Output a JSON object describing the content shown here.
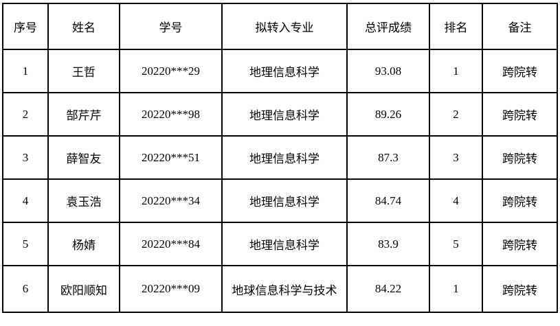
{
  "colors": {
    "border": "#000000",
    "background": "#ffffff",
    "text": "#000000"
  },
  "table": {
    "columns": [
      {
        "key": "index",
        "label": "序号"
      },
      {
        "key": "name",
        "label": "姓名"
      },
      {
        "key": "student_id",
        "label": "学号"
      },
      {
        "key": "target_major",
        "label": "拟转入专业"
      },
      {
        "key": "total_score",
        "label": "总评成绩"
      },
      {
        "key": "rank",
        "label": "排名"
      },
      {
        "key": "remark",
        "label": "备注"
      }
    ],
    "rows": [
      [
        "1",
        "王哲",
        "20220***29",
        "地理信息科学",
        "93.08",
        "1",
        "跨院转"
      ],
      [
        "2",
        "郜芹芹",
        "20220***98",
        "地理信息科学",
        "89.26",
        "2",
        "跨院转"
      ],
      [
        "3",
        "薛智友",
        "20220***51",
        "地理信息科学",
        "87.3",
        "3",
        "跨院转"
      ],
      [
        "4",
        "袁玉浩",
        "20220***34",
        "地理信息科学",
        "84.74",
        "4",
        "跨院转"
      ],
      [
        "5",
        "杨婧",
        "20220***84",
        "地理信息科学",
        "83.9",
        "5",
        "跨院转"
      ],
      [
        "6",
        "欧阳顺知",
        "20220***09",
        "地球信息科学与技术",
        "84.22",
        "1",
        "跨院转"
      ]
    ]
  }
}
